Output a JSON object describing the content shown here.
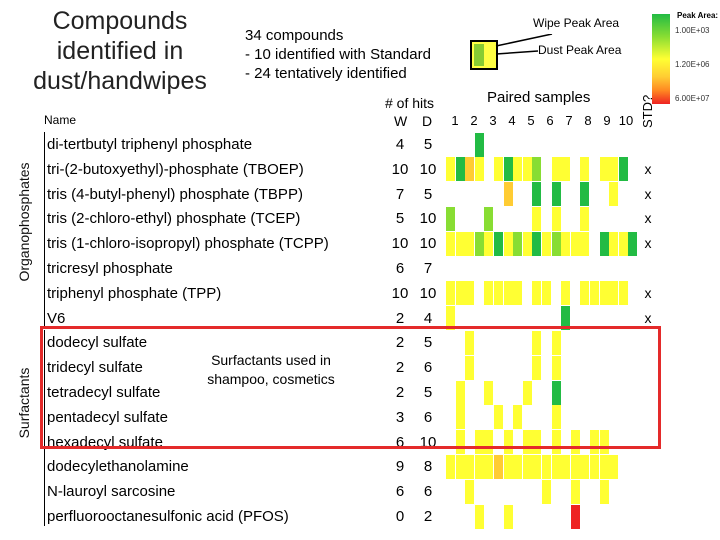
{
  "title": "Compounds identified in dust/handwipes",
  "summary": {
    "line1": "34 compounds",
    "line2": "-   10 identified with Standard",
    "line3": "-   24 tentatively identified"
  },
  "legend": {
    "wipe": "Wipe Peak Area",
    "dust": "Dust Peak Area",
    "scale_title": "Peak Area:",
    "scale_labels": [
      "1.00E+03",
      "1.20E+06",
      "6.00E+07"
    ]
  },
  "headers": {
    "name": "Name",
    "hits": "# of hits",
    "w": "W",
    "d": "D",
    "paired": "Paired samples",
    "std": "STD?",
    "samples": [
      "1",
      "2",
      "3",
      "4",
      "5",
      "6",
      "7",
      "8",
      "9",
      "10"
    ]
  },
  "categories": {
    "organophosphates": "Organophosphates",
    "surfactants": "Surfactants"
  },
  "note": {
    "line1": "Surfactants used in",
    "line2": "shampoo, cosmetics"
  },
  "colors": {
    "green": "#22bb44",
    "lightgreen": "#88dd33",
    "yellowgreen": "#ccee33",
    "yellow": "#ffff33",
    "orange": "#ffcc33",
    "red": "#ee2222",
    "box": "#e42a2a"
  },
  "rows": [
    {
      "name": "di-tertbutyl triphenyl phosphate",
      "w": "4",
      "d": "5",
      "std": ""
    },
    {
      "name": "tri-(2-butoxyethyl)-phosphate (TBOEP)",
      "w": "10",
      "d": "10",
      "std": "x"
    },
    {
      "name": "tris (4-butyl-phenyl) phosphate (TBPP)",
      "w": "7",
      "d": "5",
      "std": "x"
    },
    {
      "name": "tris (2-chloro-ethyl) phosphate (TCEP)",
      "w": "5",
      "d": "10",
      "std": "x"
    },
    {
      "name": "tris (1-chloro-isopropyl) phosphate (TCPP)",
      "w": "10",
      "d": "10",
      "std": "x"
    },
    {
      "name": "tricresyl phosphate",
      "w": "6",
      "d": "7",
      "std": ""
    },
    {
      "name": "triphenyl phosphate (TPP)",
      "w": "10",
      "d": "10",
      "std": "x"
    },
    {
      "name": "V6",
      "w": "2",
      "d": "4",
      "std": "x"
    },
    {
      "name": "dodecyl sulfate",
      "w": "2",
      "d": "5",
      "std": ""
    },
    {
      "name": "tridecyl sulfate",
      "w": "2",
      "d": "6",
      "std": ""
    },
    {
      "name": "tetradecyl sulfate",
      "w": "2",
      "d": "5",
      "std": ""
    },
    {
      "name": "pentadecyl sulfate",
      "w": "3",
      "d": "6",
      "std": ""
    },
    {
      "name": "hexadecyl sulfate",
      "w": "6",
      "d": "10",
      "std": ""
    },
    {
      "name": "dodecylethanolamine",
      "w": "9",
      "d": "8",
      "std": ""
    },
    {
      "name": "N-lauroyl sarcosine",
      "w": "6",
      "d": "6",
      "std": ""
    },
    {
      "name": "perfluorooctanesulfonic acid (PFOS)",
      "w": "0",
      "d": "2",
      "std": ""
    }
  ],
  "heatmap": [
    [
      "",
      "",
      "",
      "g",
      "",
      "",
      "",
      "",
      "",
      "",
      "",
      "",
      "",
      "",
      "",
      "",
      "",
      "",
      "",
      ""
    ],
    [
      "y",
      "g",
      "o",
      "y",
      "",
      "y",
      "g",
      "y",
      "y",
      "l",
      "",
      "y",
      "y",
      "",
      "y",
      "",
      "y",
      "y",
      "g",
      ""
    ],
    [
      "",
      "",
      "",
      "",
      "",
      "",
      "o",
      "",
      "",
      "g",
      "",
      "g",
      "",
      "",
      "g",
      "",
      "",
      "y",
      "",
      ""
    ],
    [
      "l",
      "",
      "",
      "",
      "l",
      "",
      "",
      "",
      "",
      "y",
      "",
      "y",
      "",
      "",
      "y",
      "",
      "",
      "",
      "",
      ""
    ],
    [
      "y",
      "y",
      "y",
      "l",
      "y",
      "g",
      "y",
      "l",
      "y",
      "g",
      "y",
      "l",
      "y",
      "y",
      "y",
      "",
      "g",
      "y",
      "y",
      "g"
    ],
    [
      "",
      "",
      "",
      "",
      "",
      "",
      "",
      "",
      "",
      "",
      "",
      "",
      "",
      "",
      "",
      "",
      "",
      "",
      "",
      ""
    ],
    [
      "y",
      "y",
      "y",
      "",
      "y",
      "y",
      "y",
      "y",
      "",
      "y",
      "y",
      "",
      "y",
      "",
      "y",
      "y",
      "y",
      "y",
      "y",
      ""
    ],
    [
      "y",
      "",
      "",
      "",
      "",
      "",
      "",
      "",
      "",
      "",
      "",
      "",
      "g",
      "",
      "",
      "",
      "",
      "",
      "",
      ""
    ],
    [
      "",
      "",
      "y",
      "",
      "",
      "",
      "",
      "",
      "",
      "y",
      "",
      "y",
      "",
      "",
      "",
      "",
      "",
      "",
      "",
      ""
    ],
    [
      "",
      "",
      "y",
      "",
      "",
      "",
      "",
      "",
      "",
      "y",
      "",
      "y",
      "",
      "",
      "",
      "",
      "",
      "",
      "",
      ""
    ],
    [
      "",
      "y",
      "",
      "",
      "y",
      "",
      "",
      "",
      "y",
      "",
      "",
      "g",
      "",
      "",
      "",
      "",
      "",
      "",
      "",
      ""
    ],
    [
      "",
      "y",
      "",
      "",
      "",
      "y",
      "",
      "y",
      "",
      "",
      "",
      "y",
      "",
      "",
      "",
      "",
      "",
      "",
      "",
      ""
    ],
    [
      "",
      "y",
      "",
      "y",
      "y",
      "",
      "y",
      "",
      "y",
      "y",
      "",
      "y",
      "",
      "y",
      "",
      "y",
      "y",
      "",
      "",
      ""
    ],
    [
      "y",
      "y",
      "y",
      "y",
      "y",
      "o",
      "y",
      "y",
      "y",
      "y",
      "y",
      "y",
      "y",
      "y",
      "y",
      "y",
      "y",
      "y",
      "",
      ""
    ],
    [
      "",
      "",
      "y",
      "",
      "",
      "",
      "",
      "",
      "",
      "",
      "y",
      "",
      "",
      "y",
      "",
      "",
      "y",
      "",
      "",
      ""
    ],
    [
      "",
      "",
      "",
      "y",
      "",
      "",
      "y",
      "",
      "",
      "",
      "",
      "",
      "",
      "r",
      "",
      "",
      "",
      "",
      "",
      ""
    ]
  ]
}
